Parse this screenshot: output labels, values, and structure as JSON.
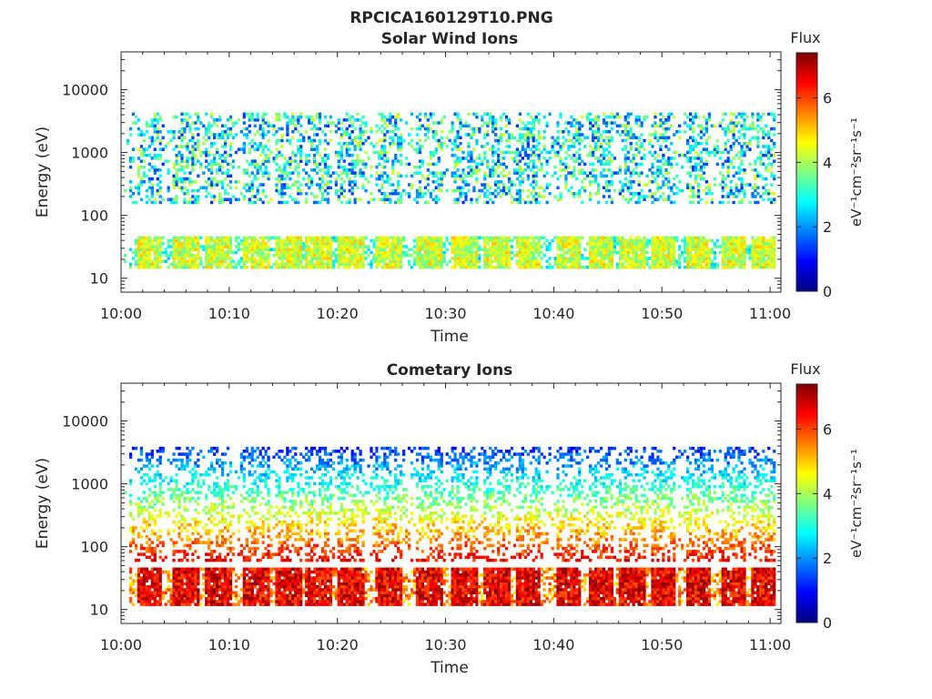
{
  "figure": {
    "title": "RPCICA160129T10.PNG"
  },
  "colormap": {
    "name": "jet",
    "stops": [
      "#00007f",
      "#0000ff",
      "#007fff",
      "#00ffff",
      "#7fff7f",
      "#ffff00",
      "#ff7f00",
      "#ff0000",
      "#7f0000"
    ]
  },
  "chart_data": [
    {
      "type": "heatmap",
      "title": "Solar Wind Ions",
      "xlabel": "Time",
      "ylabel": "Energy (eV)",
      "xlim": [
        "10:00",
        "11:01"
      ],
      "ylim": [
        6,
        40000
      ],
      "yscale": "log",
      "x_tick_labels": [
        "10:00",
        "10:10",
        "10:20",
        "10:30",
        "10:40",
        "10:50",
        "11:00"
      ],
      "y_tick_labels": [
        "10",
        "100",
        "1000",
        "10000"
      ],
      "y_ticks": [
        10,
        100,
        1000,
        10000
      ],
      "colorbar": {
        "label": "Flux",
        "units": "eV⁻¹cm⁻²sr⁻¹s⁻¹",
        "range": [
          0,
          7.4
        ],
        "tick_labels": [
          "0",
          "2",
          "4",
          "6"
        ],
        "ticks": [
          0,
          2,
          4,
          6
        ]
      },
      "burst_times_min": [
        2.5,
        5.9,
        8.9,
        12.4,
        15.4,
        18.2,
        21.1,
        24.6,
        28.3,
        31.7,
        34.6,
        37.5,
        41.2,
        44.3,
        47.1,
        50.0,
        53.3,
        56.5,
        59.4
      ],
      "low_energy_band_eV": [
        15,
        45
      ],
      "high_energy_band_eV": [
        150,
        4500
      ],
      "peak_flux_typical": 4.5,
      "grid": false
    },
    {
      "type": "heatmap",
      "title": "Cometary Ions",
      "xlabel": "Time",
      "ylabel": "Energy (eV)",
      "xlim": [
        "10:00",
        "11:01"
      ],
      "ylim": [
        6,
        40000
      ],
      "yscale": "log",
      "x_tick_labels": [
        "10:00",
        "10:10",
        "10:20",
        "10:30",
        "10:40",
        "10:50",
        "11:00"
      ],
      "y_tick_labels": [
        "10",
        "100",
        "1000",
        "10000"
      ],
      "y_ticks": [
        10,
        100,
        1000,
        10000
      ],
      "colorbar": {
        "label": "Flux",
        "units": "eV⁻¹cm⁻²sr⁻¹s⁻¹",
        "range": [
          0,
          7.4
        ],
        "tick_labels": [
          "0",
          "2",
          "4",
          "6"
        ],
        "ticks": [
          0,
          2,
          4,
          6
        ]
      },
      "burst_times_min": [
        2.5,
        5.9,
        8.9,
        12.4,
        15.4,
        18.2,
        21.1,
        24.6,
        28.3,
        31.7,
        34.6,
        37.5,
        41.2,
        44.3,
        47.1,
        50.0,
        53.3,
        56.5,
        59.4
      ],
      "low_energy_band_eV": [
        12,
        45
      ],
      "high_energy_band_eV": [
        60,
        4000
      ],
      "peak_flux_typical": 6.8,
      "grid": false
    }
  ]
}
